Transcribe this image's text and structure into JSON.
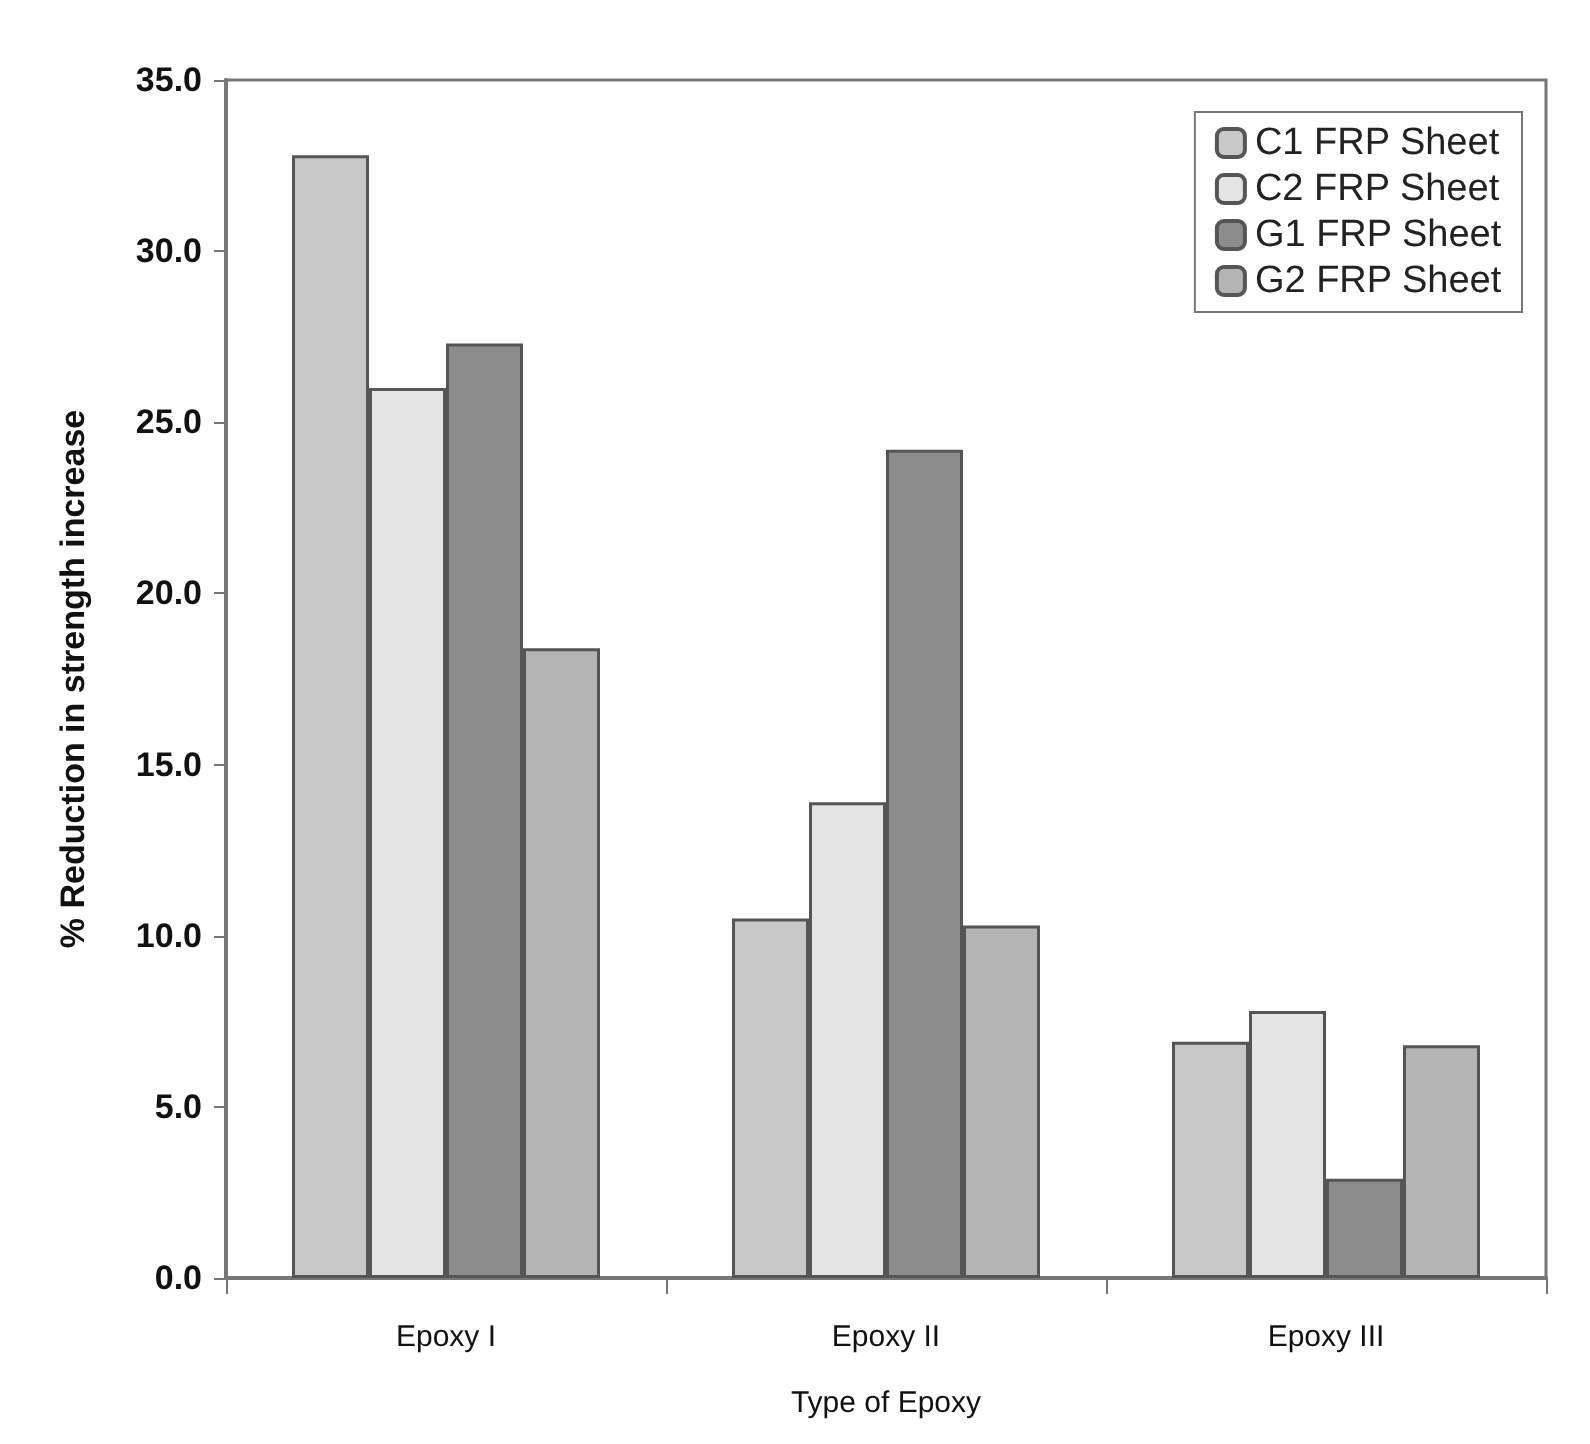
{
  "chart_data": {
    "type": "bar",
    "xlabel": "Type of Epoxy",
    "ylabel": "% Reduction in strength increase",
    "categories": [
      "Epoxy I",
      "Epoxy II",
      "Epoxy III"
    ],
    "series": [
      {
        "name": "C1 FRP Sheet",
        "color": "#c8c8c8",
        "values": [
          32.8,
          10.5,
          6.9
        ]
      },
      {
        "name": "C2 FRP Sheet",
        "color": "#e4e4e4",
        "values": [
          26.0,
          13.9,
          7.8
        ]
      },
      {
        "name": "G1 FRP Sheet",
        "color": "#8c8c8c",
        "values": [
          27.3,
          24.2,
          2.9
        ]
      },
      {
        "name": "G2 FRP Sheet",
        "color": "#b4b4b4",
        "values": [
          18.4,
          10.3,
          6.8
        ]
      }
    ],
    "ylim": [
      0,
      35
    ],
    "yticks": [
      {
        "value": 0,
        "label": "0.0"
      },
      {
        "value": 5,
        "label": "5.0"
      },
      {
        "value": 10,
        "label": "10.0"
      },
      {
        "value": 15,
        "label": "15.0"
      },
      {
        "value": 20,
        "label": "20.0"
      },
      {
        "value": 25,
        "label": "25.0"
      },
      {
        "value": 30,
        "label": "30.0"
      },
      {
        "value": 35,
        "label": "35.0"
      }
    ],
    "grid": false,
    "legend": "top right"
  }
}
